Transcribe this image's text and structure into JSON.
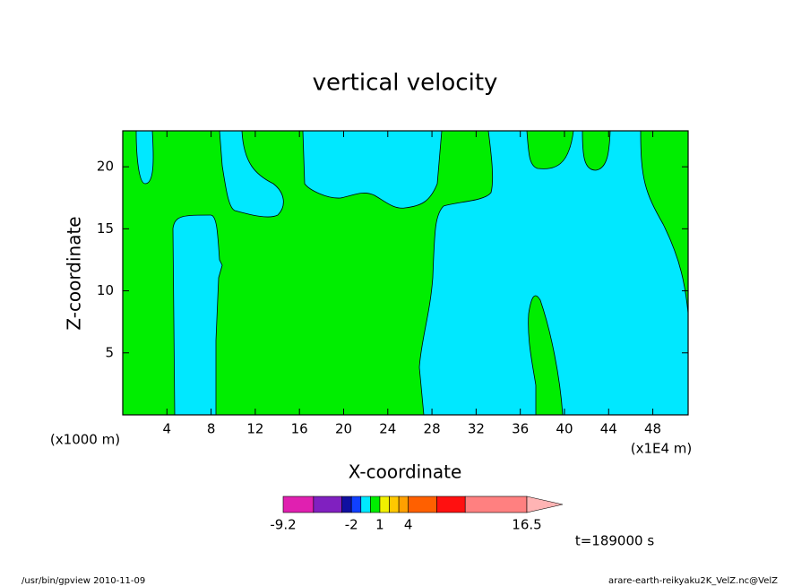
{
  "chart_data": {
    "type": "contour",
    "title": "vertical velocity",
    "x_label": "X-coordinate",
    "y_label": "Z-coordinate",
    "x_unit": "(x1E4 m)",
    "y_unit": "(x1000 m)",
    "xlim": [
      0,
      51.2
    ],
    "ylim": [
      0,
      22.9
    ],
    "xticks": [
      4,
      8,
      12,
      16,
      20,
      24,
      28,
      32,
      36,
      40,
      44,
      48
    ],
    "yticks": [
      5,
      10,
      15,
      20
    ],
    "colorbar": {
      "levels": [
        -9.2,
        -6,
        -3,
        -2,
        -1,
        0,
        1,
        2,
        3,
        4,
        7,
        10,
        16.5
      ],
      "colors": [
        "#e020b0",
        "#8020c0",
        "#1010a0",
        "#1040ff",
        "#00e8ff",
        "#00ee00",
        "#f0f000",
        "#ffc800",
        "#ffa000",
        "#ff6000",
        "#ff1010",
        "#ff8080"
      ],
      "extend_color": "#ffb4b4",
      "ticks": [
        -9.2,
        -2,
        1,
        4,
        16.5
      ]
    },
    "annotation": "t=189000 s"
  },
  "footer": {
    "left": "/usr/bin/gpview   2010-11-09",
    "right": "arare-earth-reikyaku2K_VelZ.nc@VelZ"
  }
}
